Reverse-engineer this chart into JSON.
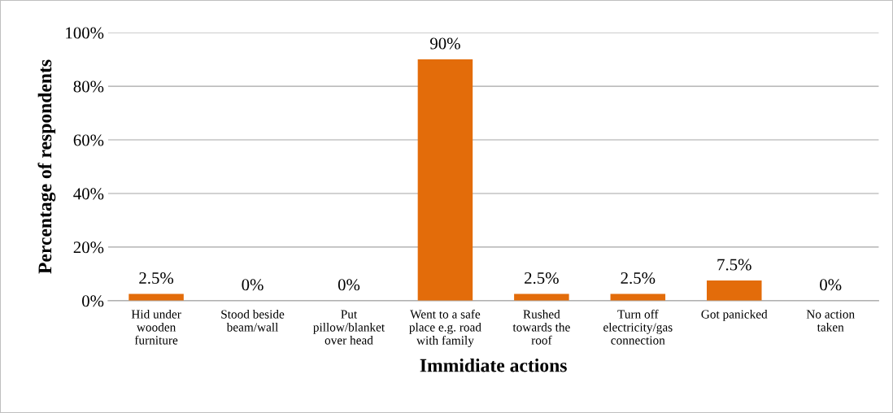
{
  "chart_data": {
    "type": "bar",
    "xlabel": "Immidiate actions",
    "ylabel": "Percentage of respondents",
    "categories": [
      "Hid under\nwooden\nfurniture",
      "Stood beside\nbeam/wall",
      "Put\npillow/blanket\nover head",
      "Went to a safe\nplace e.g. road\nwith family",
      "Rushed\ntowards the\nroof",
      "Turn off\nelectricity/gas\nconnection",
      "Got panicked",
      "No action\ntaken"
    ],
    "values": [
      2.5,
      0,
      0,
      90,
      2.5,
      2.5,
      7.5,
      0
    ],
    "value_labels": [
      "2.5%",
      "0%",
      "0%",
      "90%",
      "2.5%",
      "2.5%",
      "7.5%",
      "0%"
    ],
    "color": "#e36c0a",
    "ylim": [
      0,
      100
    ],
    "yticks": [
      {
        "value": 0,
        "label": "0%"
      },
      {
        "value": 20,
        "label": "20%"
      },
      {
        "value": 40,
        "label": "40%"
      },
      {
        "value": 60,
        "label": "60%"
      },
      {
        "value": 80,
        "label": "80%"
      },
      {
        "value": 100,
        "label": "100%"
      }
    ],
    "grid": "y",
    "legend": false
  }
}
